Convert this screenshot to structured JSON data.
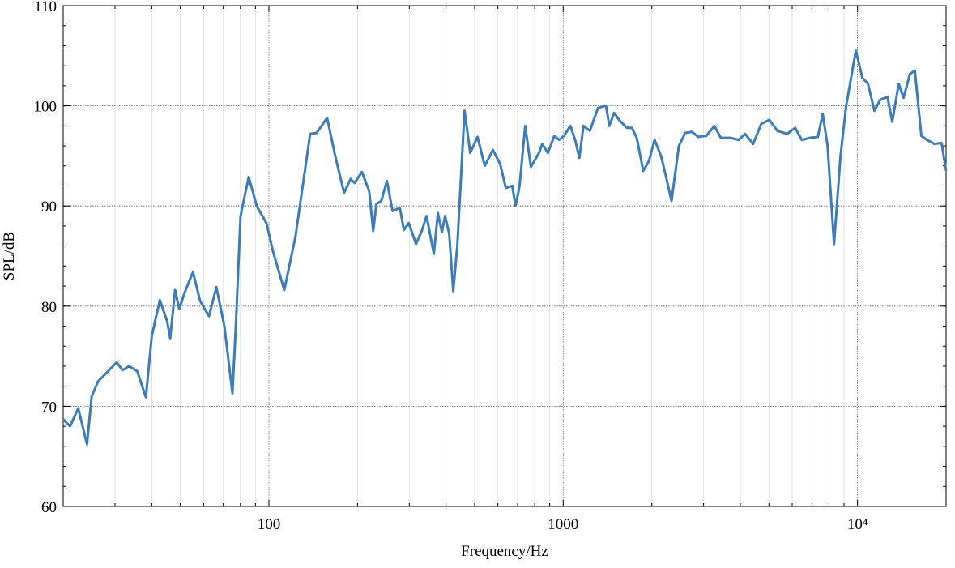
{
  "chart_data": {
    "type": "line",
    "xlabel": "Frequency/Hz",
    "ylabel": "SPL/dB",
    "xscale": "log",
    "grid": true,
    "xlim": [
      20,
      20000
    ],
    "ylim": [
      60,
      110
    ],
    "xticks": [
      100,
      1000,
      {
        "value": 10000,
        "label": "10⁴"
      }
    ],
    "yticks": [
      60,
      70,
      80,
      90,
      100,
      110
    ],
    "x": [
      20,
      21.1,
      22.5,
      24.1,
      25.0,
      26.3,
      28.0,
      30.4,
      31.8,
      33.5,
      35.7,
      38.2,
      40.0,
      42.6,
      45.1,
      46.2,
      48.0,
      49.6,
      51.5,
      55.2,
      58.4,
      62.6,
      66.3,
      70.6,
      73.3,
      75.2,
      77.2,
      80.1,
      85.4,
      90.9,
      98.1,
      103.2,
      112.8,
      123.2,
      138.1,
      145.3,
      157.7,
      168.0,
      180.1,
      189.5,
      195.5,
      207.0,
      219.1,
      226.2,
      231.9,
      240.9,
      251.8,
      263.2,
      278.7,
      287.6,
      298.7,
      316.2,
      330.6,
      343.4,
      363.5,
      375.2,
      387.2,
      397.0,
      409.9,
      423.1,
      436.7,
      462.2,
      483.2,
      511.4,
      541.4,
      576.8,
      610.6,
      638.2,
      671.4,
      688.6,
      710.7,
      742.9,
      776.6,
      827.4,
      848.5,
      886.9,
      933.0,
      968.9,
      1006,
      1058,
      1100,
      1135,
      1172,
      1232,
      1313,
      1398,
      1434,
      1490,
      1557,
      1648,
      1712,
      1778,
      1871,
      1956,
      2044,
      2150,
      2233,
      2334,
      2472,
      2599,
      2735,
      2876,
      3064,
      3264,
      3433,
      3705,
      3948,
      4151,
      4421,
      4711,
      5018,
      5346,
      5768,
      6144,
      6462,
      6885,
      7334,
      7618,
      7913,
      8324,
      8757,
      9152,
      9874,
      10388,
      10857,
      11421,
      11939,
      12640,
      13129,
      13807,
      14342,
      15086,
      15668,
      16482,
      17230,
      18239,
      19311,
      20000
    ],
    "series": [
      {
        "name": "SPL",
        "color": "#3b7dba",
        "values": [
          68.7,
          68.0,
          69.8,
          66.2,
          71,
          72.5,
          73.3,
          74.4,
          73.6,
          74.0,
          73.5,
          70.9,
          77,
          80.6,
          78.5,
          76.8,
          81.6,
          79.7,
          81.2,
          83.4,
          80.5,
          79,
          81.9,
          78,
          74,
          71.3,
          78,
          89,
          92.9,
          90,
          88.3,
          85.5,
          81.6,
          87,
          97.2,
          97.3,
          98.8,
          95,
          91.3,
          92.7,
          92.3,
          93.4,
          91.5,
          87.5,
          90.2,
          90.5,
          92.5,
          89.5,
          89.8,
          87.6,
          88.3,
          86.2,
          87.5,
          89,
          85.2,
          89.3,
          87.4,
          89,
          87.2,
          81.5,
          86,
          99.5,
          95.3,
          96.9,
          94,
          95.6,
          94.2,
          91.8,
          92,
          90,
          92,
          98,
          93.9,
          95.3,
          96.2,
          95.3,
          97,
          96.6,
          97,
          98,
          96.5,
          94.8,
          98,
          97.5,
          99.8,
          100,
          98,
          99.3,
          98.5,
          97.8,
          97.8,
          96.8,
          93.5,
          94.5,
          96.6,
          95,
          93,
          90.5,
          96,
          97.3,
          97.4,
          96.9,
          97,
          98,
          96.8,
          96.8,
          96.6,
          97.2,
          96.2,
          98.2,
          98.6,
          97.5,
          97.2,
          97.8,
          96.6,
          96.8,
          96.9,
          99.2,
          96,
          86.2,
          95,
          100,
          105.5,
          102.8,
          102.2,
          99.5,
          100.6,
          100.9,
          98.4,
          102.2,
          100.8,
          103.2,
          103.5,
          97,
          96.6,
          96.2,
          96.3,
          93.5
        ]
      }
    ]
  }
}
